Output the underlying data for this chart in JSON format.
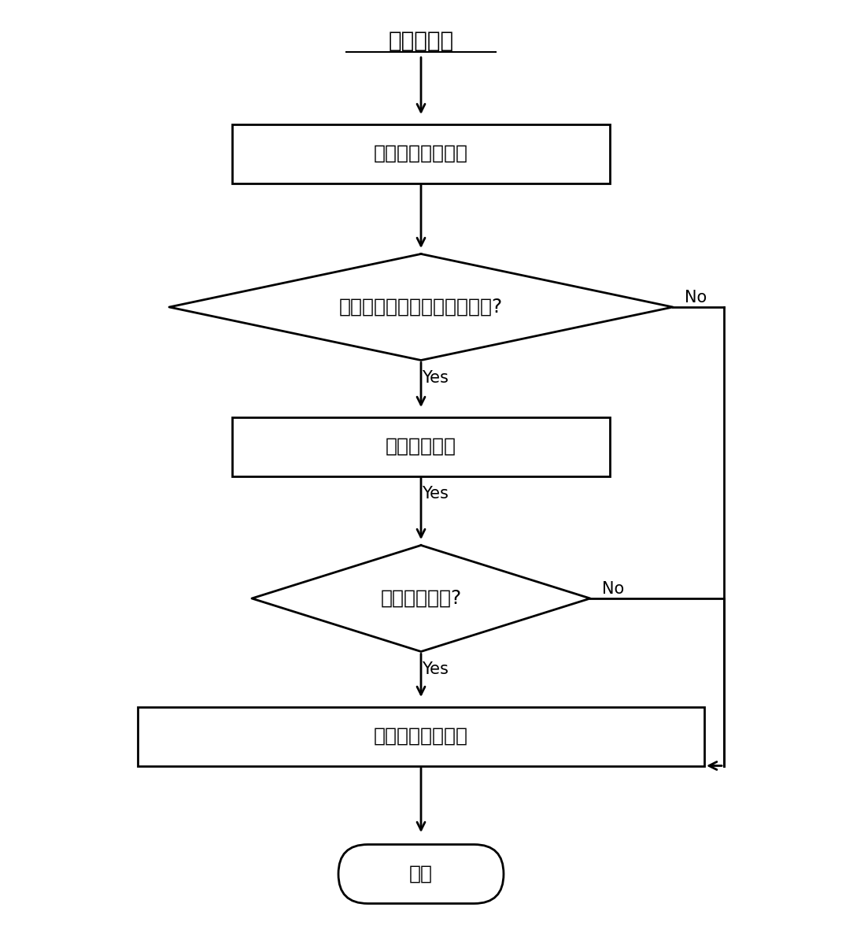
{
  "title": "定时器处理",
  "node1_text": "置定时器周期标识",
  "diamond1_text": "当前控制处于调整等待状态吗?",
  "node2_text": "等待时间递减",
  "diamond2_text": "等待时间到吗?",
  "node3_text": "清除调整等待标识",
  "exit_text": "退出",
  "yes_label": "Yes",
  "no_label": "No",
  "bg_color": "#ffffff",
  "box_color": "#000000",
  "text_color": "#000000",
  "font_size": 18,
  "title_font_size": 20,
  "label_font_size": 15
}
